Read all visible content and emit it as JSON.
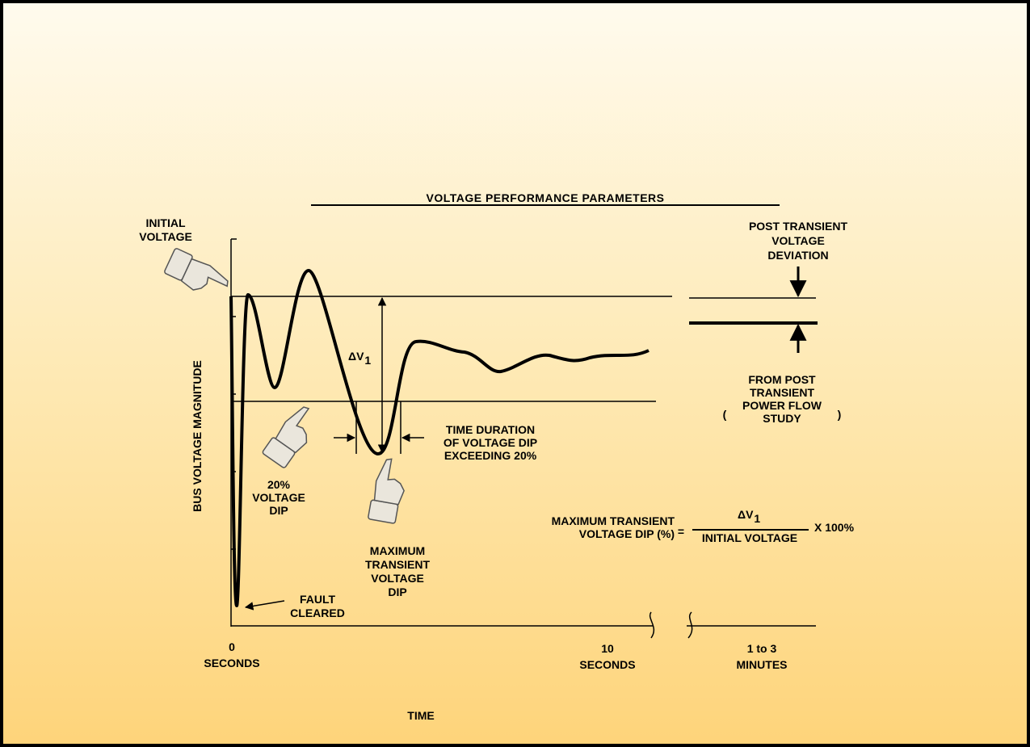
{
  "title": "VOLTAGE PERFORMANCE PARAMETERS",
  "y_axis_label": "BUS VOLTAGE MAGNITUDE",
  "x_axis_label": "TIME",
  "x_labels": [
    {
      "lines": [
        "0",
        "SECONDS"
      ]
    },
    {
      "lines": [
        "10",
        "SECONDS"
      ]
    },
    {
      "lines": [
        "1 to 3",
        "MINUTES"
      ]
    }
  ],
  "annotations": {
    "initial_voltage": [
      "INITIAL",
      "VOLTAGE"
    ],
    "delta_v": {
      "symbol": "ΔV",
      "subscript": "1"
    },
    "voltage_dip_20": [
      "20%",
      "VOLTAGE",
      "DIP"
    ],
    "max_dip": [
      "MAXIMUM",
      "TRANSIENT",
      "VOLTAGE",
      "DIP"
    ],
    "fault_cleared": [
      "FAULT",
      "CLEARED"
    ],
    "time_duration": [
      "TIME DURATION",
      "OF VOLTAGE DIP",
      "EXCEEDING 20%"
    ],
    "post_transient": [
      "POST TRANSIENT",
      "VOLTAGE",
      "DEVIATION"
    ],
    "power_flow_study": {
      "open": "(",
      "lines": [
        "FROM POST",
        "TRANSIENT",
        "POWER FLOW",
        "STUDY"
      ],
      "close": ")"
    }
  },
  "formula": {
    "left": [
      "MAXIMUM TRANSIENT",
      "VOLTAGE DIP (%)"
    ],
    "equals": "=",
    "numerator": {
      "symbol": "ΔV",
      "subscript": "1"
    },
    "denominator": "INITIAL VOLTAGE",
    "multiplier": "X 100%"
  }
}
